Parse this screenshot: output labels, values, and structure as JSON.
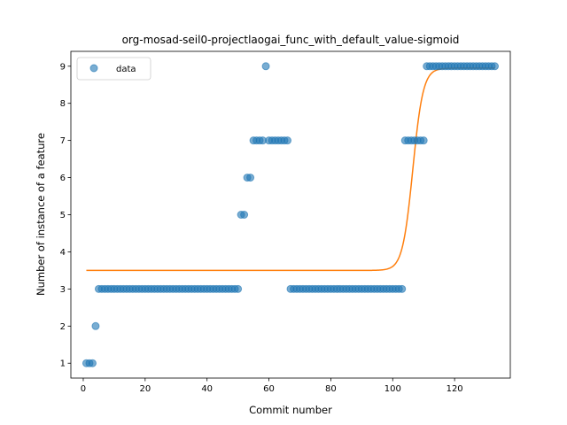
{
  "chart_data": {
    "type": "scatter",
    "title": "org-mosad-seil0-projectlaogai_func_with_default_value-sigmoid",
    "xlabel": "Commit number",
    "ylabel": "Number of instance of a feature",
    "xlim": [
      -4,
      138
    ],
    "ylim": [
      0.6,
      9.4
    ],
    "x_ticks": [
      0,
      20,
      40,
      60,
      80,
      100,
      120
    ],
    "y_ticks": [
      1,
      2,
      3,
      4,
      5,
      6,
      7,
      8,
      9
    ],
    "grid": false,
    "legend": {
      "position": "top-left",
      "entries": [
        "data"
      ]
    },
    "colors": {
      "data": "#1f77b4",
      "fit": "#ff7f0e"
    },
    "series": [
      {
        "name": "data",
        "kind": "scatter",
        "points": [
          [
            1,
            1
          ],
          [
            2,
            1
          ],
          [
            3,
            1
          ],
          [
            4,
            2
          ],
          [
            5,
            3
          ],
          [
            6,
            3
          ],
          [
            7,
            3
          ],
          [
            8,
            3
          ],
          [
            9,
            3
          ],
          [
            10,
            3
          ],
          [
            11,
            3
          ],
          [
            12,
            3
          ],
          [
            13,
            3
          ],
          [
            14,
            3
          ],
          [
            15,
            3
          ],
          [
            16,
            3
          ],
          [
            17,
            3
          ],
          [
            18,
            3
          ],
          [
            19,
            3
          ],
          [
            20,
            3
          ],
          [
            21,
            3
          ],
          [
            22,
            3
          ],
          [
            23,
            3
          ],
          [
            24,
            3
          ],
          [
            25,
            3
          ],
          [
            26,
            3
          ],
          [
            27,
            3
          ],
          [
            28,
            3
          ],
          [
            29,
            3
          ],
          [
            30,
            3
          ],
          [
            31,
            3
          ],
          [
            32,
            3
          ],
          [
            33,
            3
          ],
          [
            34,
            3
          ],
          [
            35,
            3
          ],
          [
            36,
            3
          ],
          [
            37,
            3
          ],
          [
            38,
            3
          ],
          [
            39,
            3
          ],
          [
            40,
            3
          ],
          [
            41,
            3
          ],
          [
            42,
            3
          ],
          [
            43,
            3
          ],
          [
            44,
            3
          ],
          [
            45,
            3
          ],
          [
            46,
            3
          ],
          [
            47,
            3
          ],
          [
            48,
            3
          ],
          [
            49,
            3
          ],
          [
            50,
            3
          ],
          [
            51,
            5
          ],
          [
            52,
            5
          ],
          [
            53,
            6
          ],
          [
            54,
            6
          ],
          [
            55,
            7
          ],
          [
            56,
            7
          ],
          [
            57,
            7
          ],
          [
            58,
            7
          ],
          [
            59,
            9
          ],
          [
            60,
            7
          ],
          [
            61,
            7
          ],
          [
            62,
            7
          ],
          [
            63,
            7
          ],
          [
            64,
            7
          ],
          [
            65,
            7
          ],
          [
            66,
            7
          ],
          [
            67,
            3
          ],
          [
            68,
            3
          ],
          [
            69,
            3
          ],
          [
            70,
            3
          ],
          [
            71,
            3
          ],
          [
            72,
            3
          ],
          [
            73,
            3
          ],
          [
            74,
            3
          ],
          [
            75,
            3
          ],
          [
            76,
            3
          ],
          [
            77,
            3
          ],
          [
            78,
            3
          ],
          [
            79,
            3
          ],
          [
            80,
            3
          ],
          [
            81,
            3
          ],
          [
            82,
            3
          ],
          [
            83,
            3
          ],
          [
            84,
            3
          ],
          [
            85,
            3
          ],
          [
            86,
            3
          ],
          [
            87,
            3
          ],
          [
            88,
            3
          ],
          [
            89,
            3
          ],
          [
            90,
            3
          ],
          [
            91,
            3
          ],
          [
            92,
            3
          ],
          [
            93,
            3
          ],
          [
            94,
            3
          ],
          [
            95,
            3
          ],
          [
            96,
            3
          ],
          [
            97,
            3
          ],
          [
            98,
            3
          ],
          [
            99,
            3
          ],
          [
            100,
            3
          ],
          [
            101,
            3
          ],
          [
            102,
            3
          ],
          [
            103,
            3
          ],
          [
            104,
            7
          ],
          [
            105,
            7
          ],
          [
            106,
            7
          ],
          [
            107,
            7
          ],
          [
            108,
            7
          ],
          [
            109,
            7
          ],
          [
            110,
            7
          ],
          [
            111,
            9
          ],
          [
            112,
            9
          ],
          [
            113,
            9
          ],
          [
            114,
            9
          ],
          [
            115,
            9
          ],
          [
            116,
            9
          ],
          [
            117,
            9
          ],
          [
            118,
            9
          ],
          [
            119,
            9
          ],
          [
            120,
            9
          ],
          [
            121,
            9
          ],
          [
            122,
            9
          ],
          [
            123,
            9
          ],
          [
            124,
            9
          ],
          [
            125,
            9
          ],
          [
            126,
            9
          ],
          [
            127,
            9
          ],
          [
            128,
            9
          ],
          [
            129,
            9
          ],
          [
            130,
            9
          ],
          [
            131,
            9
          ],
          [
            132,
            9
          ],
          [
            133,
            9
          ]
        ]
      },
      {
        "kind": "sigmoid-fit-line",
        "low": 3.5,
        "high": 8.95,
        "midpoint": 106.5,
        "steepness": 0.6,
        "x_range": [
          1,
          133
        ]
      }
    ]
  }
}
